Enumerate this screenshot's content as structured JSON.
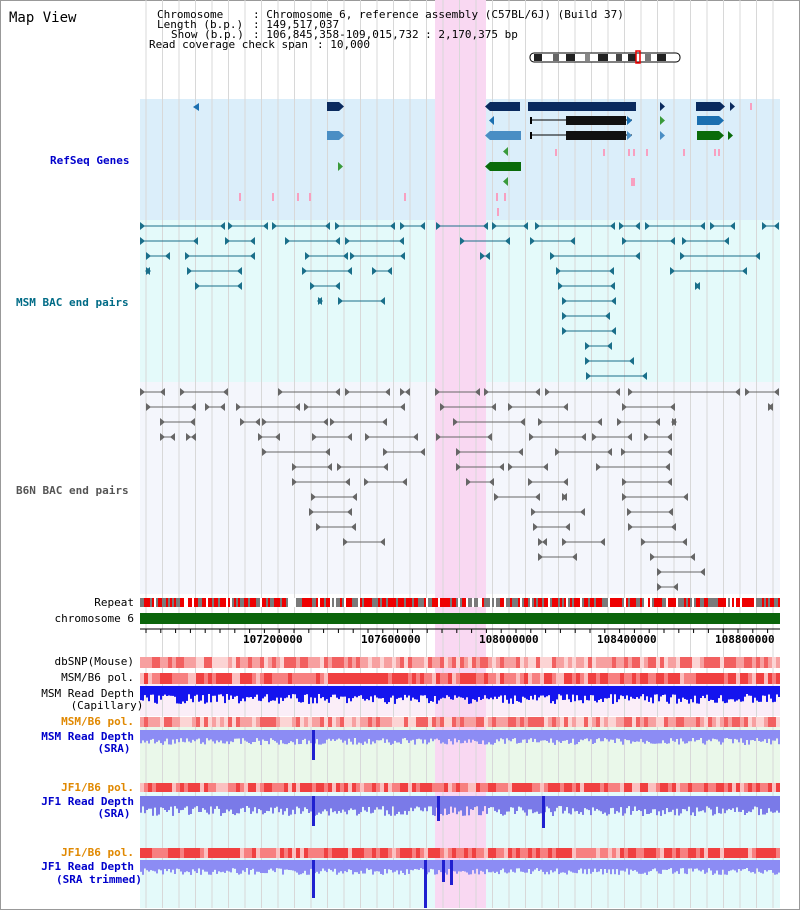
{
  "title": "Map View",
  "info": {
    "chromosome_key": "Chromosome",
    "chromosome_val": ": Chromosome 6, reference assembly (C57BL/6J) (Build 37)",
    "length_key": "Length (b.p.)",
    "length_val": ": 149,517,037",
    "show_key": "Show (b.p.)",
    "show_val": ": 106,845,358-109,015,732 : 2,170,375 bp",
    "span_key": "Read coverage check span",
    "span_val": ": 10,000"
  },
  "tracks": {
    "refseq": "RefSeq Genes",
    "msm_bac": "MSM BAC end pairs",
    "b6n_bac": "B6N BAC end pairs",
    "repeat": "Repeat",
    "chromosome": "chromosome 6",
    "dbsnp": "dbSNP(Mouse)",
    "msm_b6_pol_1": "MSM/B6 pol.",
    "msm_read_depth_cap_1": "MSM Read Depth",
    "msm_read_depth_cap_2": "(Capillary)",
    "msm_b6_pol_2": "MSM/B6 pol.",
    "msm_read_depth_sra_1": "MSM Read Depth",
    "msm_read_depth_sra_2": "(SRA)",
    "jf1_b6_pol_1": "JF1/B6 pol.",
    "jf1_read_depth_sra_1": "JF1 Read Depth",
    "jf1_read_depth_sra_2": "(SRA)",
    "jf1_b6_pol_2": "JF1/B6 pol.",
    "jf1_read_depth_trim_1": "JF1 Read Depth",
    "jf1_read_depth_trim_2": "(SRA trimmed)"
  },
  "axis_ticks": [
    "107200000",
    "107600000",
    "108000000",
    "108400000",
    "108800000"
  ],
  "colors": {
    "refseq_bg": "#dbeefa",
    "msm_bg": "#e4fafa",
    "b6n_bg": "#f4f6fc",
    "highlight": "#f9d8f2",
    "refseq_label": "#0000cc",
    "msm_label": "#006b86",
    "b6n_label": "#555555",
    "orange_label": "#e08800",
    "blue_label": "#0000cc"
  }
}
